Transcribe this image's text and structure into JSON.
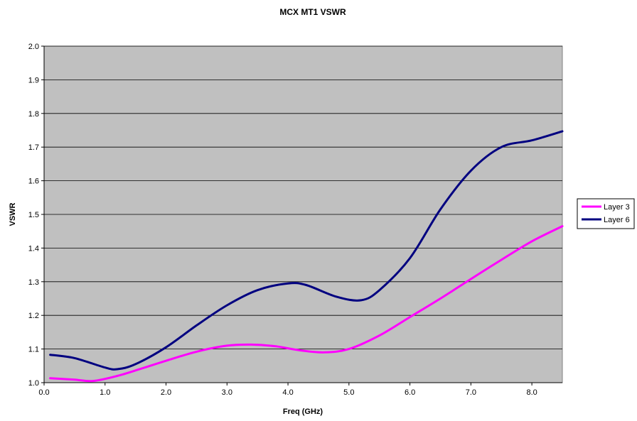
{
  "chart_data": {
    "type": "line",
    "title": "MCX MT1 VSWR",
    "xlabel": "Freq (GHz)",
    "ylabel": "VSWR",
    "xlim": [
      0.0,
      8.5
    ],
    "ylim": [
      1.0,
      2.0
    ],
    "x_ticks": [
      "0.0",
      "1.0",
      "2.0",
      "3.0",
      "4.0",
      "5.0",
      "6.0",
      "7.0",
      "8.0"
    ],
    "y_ticks": [
      "1.0",
      "1.1",
      "1.2",
      "1.3",
      "1.4",
      "1.5",
      "1.6",
      "1.7",
      "1.8",
      "1.9",
      "2.0"
    ],
    "grid": true,
    "legend_position": "right",
    "plot_background": "#c0c0c0",
    "series": [
      {
        "name": "Layer 3",
        "color": "#ff00ff",
        "x": [
          0.1,
          0.5,
          0.8,
          1.2,
          1.6,
          2.0,
          2.5,
          3.0,
          3.4,
          3.8,
          4.2,
          4.6,
          5.0,
          5.5,
          6.0,
          6.5,
          7.0,
          7.5,
          8.0,
          8.5
        ],
        "y": [
          1.013,
          1.009,
          1.005,
          1.02,
          1.042,
          1.065,
          1.092,
          1.11,
          1.113,
          1.108,
          1.096,
          1.09,
          1.1,
          1.14,
          1.195,
          1.25,
          1.308,
          1.365,
          1.42,
          1.465
        ]
      },
      {
        "name": "Layer 6",
        "color": "#000080",
        "x": [
          0.1,
          0.5,
          1.0,
          1.2,
          1.5,
          2.0,
          2.5,
          3.0,
          3.5,
          4.0,
          4.3,
          4.8,
          5.2,
          5.5,
          6.0,
          6.5,
          7.0,
          7.5,
          8.0,
          8.5
        ],
        "y": [
          1.083,
          1.073,
          1.045,
          1.04,
          1.055,
          1.105,
          1.17,
          1.23,
          1.275,
          1.295,
          1.29,
          1.255,
          1.245,
          1.275,
          1.37,
          1.515,
          1.63,
          1.7,
          1.72,
          1.747
        ]
      }
    ]
  }
}
